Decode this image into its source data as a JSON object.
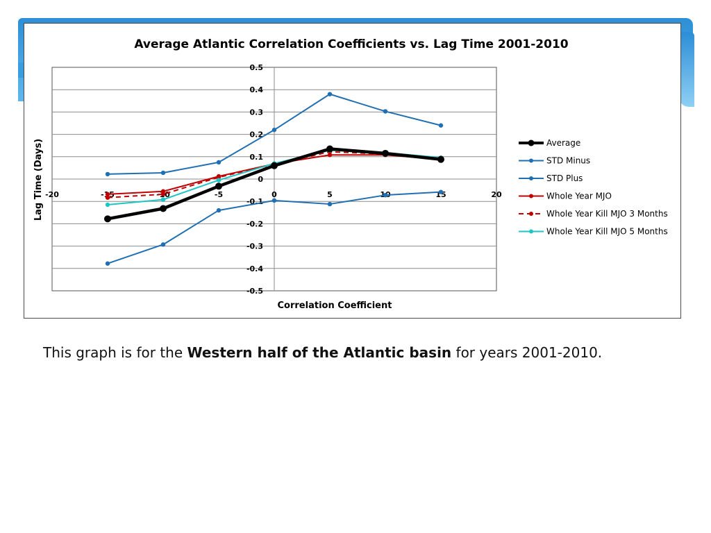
{
  "caption": {
    "prefix": "This graph is for the ",
    "bold": "Western half of the Atlantic basin",
    "suffix": " for years 2001-2010."
  },
  "chart_data": {
    "type": "line",
    "title": "Average Atlantic Correlation Coefficients vs. Lag Time 2001-2010",
    "xlabel": "Correlation Coefficient",
    "ylabel": "Lag Time (Days)",
    "xlim": [
      -20,
      20
    ],
    "ylim": [
      -0.5,
      0.5
    ],
    "x_ticks": [
      -20,
      -15,
      -10,
      -5,
      0,
      5,
      10,
      15,
      20
    ],
    "y_ticks": [
      -0.5,
      -0.4,
      -0.3,
      -0.2,
      -0.1,
      0,
      0.1,
      0.2,
      0.3,
      0.4,
      0.5
    ],
    "grid": "horizontal",
    "legend_position": "right",
    "x": [
      -15,
      -10,
      -5,
      0,
      5,
      10,
      15
    ],
    "series": [
      {
        "name": "Average",
        "color": "#000000",
        "style": "thick",
        "values": [
          -0.178,
          -0.132,
          -0.032,
          0.06,
          0.135,
          0.115,
          0.088
        ]
      },
      {
        "name": "STD Minus",
        "color": "#1f6fb2",
        "style": "solid",
        "values": [
          0.022,
          0.028,
          0.075,
          0.22,
          0.38,
          0.303,
          0.24
        ]
      },
      {
        "name": "STD Plus",
        "color": "#1f6fb2",
        "style": "solid",
        "values": [
          -0.378,
          -0.293,
          -0.14,
          -0.096,
          -0.112,
          -0.072,
          -0.058
        ]
      },
      {
        "name": "Whole Year MJO",
        "color": "#c00000",
        "style": "solid",
        "values": [
          -0.068,
          -0.055,
          0.012,
          0.068,
          0.108,
          0.108,
          0.088
        ]
      },
      {
        "name": "Whole Year Kill MJO 3 Months",
        "color": "#c00000",
        "style": "dashed",
        "values": [
          -0.083,
          -0.068,
          0.008,
          0.066,
          0.122,
          0.112,
          0.092
        ]
      },
      {
        "name": "Whole Year Kill MJO 5 Months",
        "color": "#1fc4c4",
        "style": "solid",
        "values": [
          -0.115,
          -0.092,
          -0.005,
          0.07,
          0.128,
          0.118,
          0.096
        ]
      }
    ]
  }
}
